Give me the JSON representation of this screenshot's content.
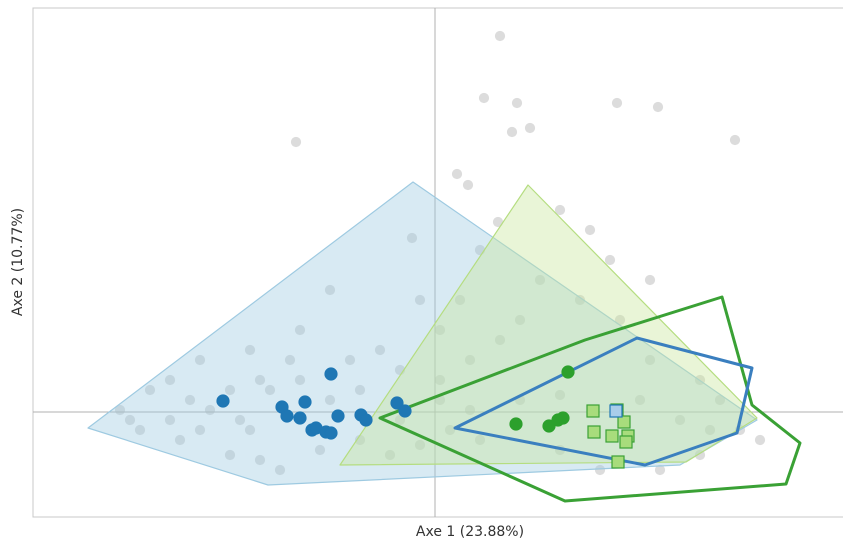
{
  "chart_data": {
    "type": "scatter",
    "xlabel": "Axe 1 (23.88%)",
    "ylabel": "Axe 2 (10.77%)",
    "xlim": [
      -402,
      408
    ],
    "ylim": [
      -105,
      404
    ],
    "origin_lines": true,
    "hulls": [
      {
        "fill": "#9ecae1",
        "stroke": "#9ecae1",
        "x": [
          -347,
          -22,
          322,
          245,
          -167
        ],
        "y": [
          -16,
          230,
          -8,
          -53,
          -73
        ]
      },
      {
        "fill": "#c7e59a",
        "stroke": "#b5dd80",
        "x": [
          -95,
          93,
          322,
          251
        ],
        "y": [
          -53,
          227,
          -6,
          -50
        ]
      },
      {
        "fill": null,
        "stroke": "#3aa135",
        "x": [
          -55,
          150,
          287,
          317,
          365,
          351,
          130
        ],
        "y": [
          -6,
          72,
          115,
          7,
          -31,
          -72,
          -89
        ]
      },
      {
        "fill": null,
        "stroke": "#3a7fbf",
        "x": [
          20,
          202,
          317,
          302,
          210
        ],
        "y": [
          -16,
          74,
          44,
          -21,
          -53
        ]
      }
    ],
    "series": [
      {
        "color": "#dcdcdc",
        "edge": "#dcdcdc",
        "marker": "circle",
        "x": [
          65,
          49,
          82,
          77,
          95,
          182,
          223,
          300,
          -139,
          33,
          22,
          -23,
          63,
          45,
          155,
          125,
          175,
          -15,
          -105,
          -135,
          -185,
          -235,
          -265,
          -285,
          -315,
          -295,
          -255,
          -205,
          -175,
          -155,
          -85,
          -55,
          -35,
          5,
          35,
          65,
          85,
          185,
          215,
          265,
          285,
          305,
          325,
          265,
          225,
          165,
          125,
          45,
          15,
          -15,
          -45,
          -75,
          -105,
          -165,
          -195,
          -225,
          -245,
          -175,
          -145,
          -115,
          -185,
          -35,
          5,
          35,
          85,
          125,
          205,
          245,
          275,
          -265,
          -305,
          -75,
          -135,
          -205,
          -235,
          25,
          105,
          145,
          215,
          5
        ],
        "values": [
          376,
          314,
          309,
          280,
          284,
          309,
          305,
          272,
          270,
          227,
          238,
          174,
          190,
          162,
          182,
          202,
          152,
          112,
          122,
          82,
          62,
          52,
          32,
          22,
          2,
          -18,
          -28,
          -43,
          -48,
          -58,
          52,
          62,
          42,
          32,
          52,
          72,
          92,
          92,
          52,
          32,
          12,
          -18,
          -28,
          -43,
          -58,
          -58,
          -38,
          -28,
          -18,
          -33,
          -43,
          -28,
          12,
          22,
          -8,
          2,
          12,
          32,
          52,
          -38,
          -18,
          -8,
          12,
          2,
          12,
          17,
          12,
          -8,
          -18,
          -8,
          -8,
          22,
          32,
          22,
          -18,
          112,
          132,
          112,
          132,
          82
        ]
      },
      {
        "color": "#1f77b4",
        "edge": "#1f77b4",
        "marker": "circle",
        "x": [
          -212,
          -153,
          -148,
          -130,
          -135,
          -123,
          -119,
          -109,
          -104,
          -97,
          -104,
          -74,
          -69,
          -38,
          -30
        ],
        "values": [
          11,
          5,
          -4,
          10,
          -6,
          -18,
          -16,
          -20,
          -21,
          -4,
          38,
          -3,
          -8,
          9,
          1
        ]
      },
      {
        "color": "#2ca02c",
        "edge": "#2ca02c",
        "marker": "circle",
        "x": [
          133,
          81,
          114,
          123,
          128
        ],
        "values": [
          40,
          -12,
          -14,
          -8,
          -6
        ]
      },
      {
        "color": "#a8dc7c",
        "edge": "#3aa135",
        "marker": "square",
        "x": [
          158,
          159,
          177,
          182,
          189,
          193,
          191,
          183
        ],
        "values": [
          1,
          -20,
          -24,
          2,
          -10,
          -24,
          -30,
          -50
        ]
      },
      {
        "color": "#a9cdea",
        "edge": "#1f77b4",
        "marker": "square",
        "x": [
          181
        ],
        "values": [
          1
        ]
      }
    ]
  }
}
